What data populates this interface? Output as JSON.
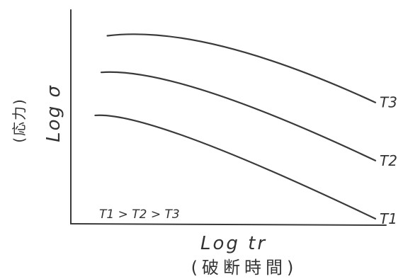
{
  "chart_data": {
    "type": "line",
    "xlabel": "Log tr",
    "xlabel_sub": "(破断時間)",
    "ylabel": "Log σ",
    "ylabel_sub": "(応力)",
    "annotation": "T1 > T2 > T3",
    "grid": false,
    "axes_ticks": false,
    "colors": {
      "line": "#3a3a3a",
      "axis": "#3a3a3a",
      "text": "#333333"
    },
    "series": [
      {
        "name": "T3",
        "points": [
          [
            0.12,
            0.88
          ],
          [
            0.5,
            0.83
          ],
          [
            1.0,
            0.57
          ]
        ]
      },
      {
        "name": "T2",
        "points": [
          [
            0.1,
            0.71
          ],
          [
            0.45,
            0.62
          ],
          [
            1.0,
            0.3
          ]
        ]
      },
      {
        "name": "T1",
        "points": [
          [
            0.08,
            0.51
          ],
          [
            0.4,
            0.4
          ],
          [
            1.0,
            0.03
          ]
        ]
      }
    ]
  }
}
